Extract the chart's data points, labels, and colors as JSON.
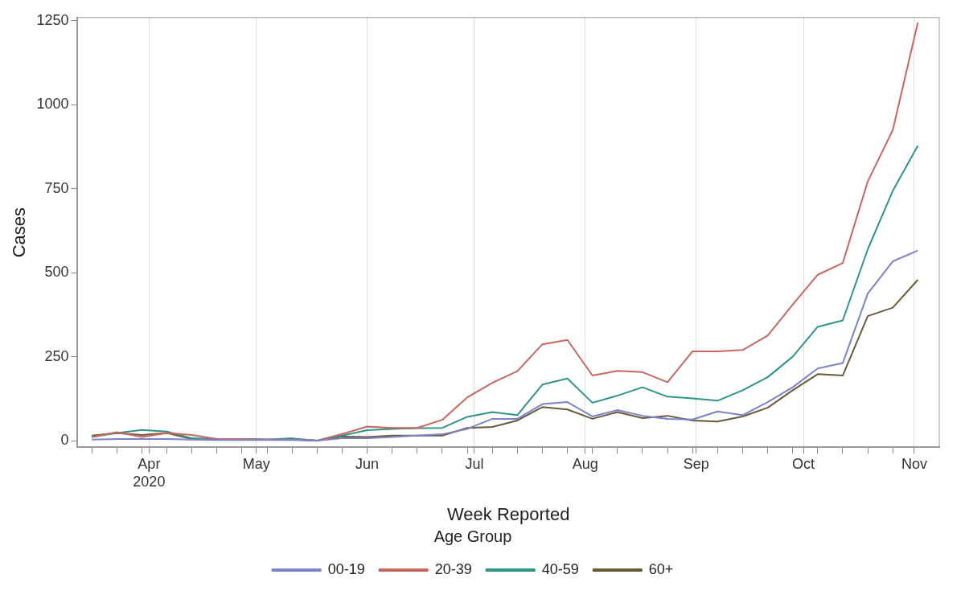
{
  "chart_data": {
    "type": "line",
    "xlabel": "Week Reported",
    "ylabel": "Cases",
    "legend_title": "Age Group",
    "legend": "bottom",
    "grid": "x",
    "marker": "none",
    "line_style": "solid",
    "x": [
      "2020-03-16",
      "2020-03-23",
      "2020-03-30",
      "2020-04-06",
      "2020-04-13",
      "2020-04-20",
      "2020-04-27",
      "2020-05-04",
      "2020-05-11",
      "2020-05-18",
      "2020-05-25",
      "2020-06-01",
      "2020-06-08",
      "2020-06-15",
      "2020-06-22",
      "2020-06-29",
      "2020-07-06",
      "2020-07-13",
      "2020-07-20",
      "2020-07-27",
      "2020-08-03",
      "2020-08-10",
      "2020-08-17",
      "2020-08-24",
      "2020-08-31",
      "2020-09-07",
      "2020-09-14",
      "2020-09-21",
      "2020-09-28",
      "2020-10-05",
      "2020-10-12",
      "2020-10-19",
      "2020-10-26",
      "2020-11-02"
    ],
    "xlim": [
      "2020-03-12",
      "2020-11-08"
    ],
    "xticks": [
      {
        "value": "2020-03-16",
        "label": null
      },
      {
        "value": "2020-03-23",
        "label": null
      },
      {
        "value": "2020-03-30",
        "label": null
      },
      {
        "value": "2020-04-01",
        "label": "Apr 2020"
      },
      {
        "value": "2020-04-06",
        "label": null
      },
      {
        "value": "2020-04-13",
        "label": null
      },
      {
        "value": "2020-04-20",
        "label": null
      },
      {
        "value": "2020-04-27",
        "label": null
      },
      {
        "value": "2020-05-01",
        "label": "May"
      },
      {
        "value": "2020-05-04",
        "label": null
      },
      {
        "value": "2020-05-11",
        "label": null
      },
      {
        "value": "2020-05-18",
        "label": null
      },
      {
        "value": "2020-05-25",
        "label": null
      },
      {
        "value": "2020-06-01",
        "label": "Jun"
      },
      {
        "value": "2020-06-08",
        "label": null
      },
      {
        "value": "2020-06-15",
        "label": null
      },
      {
        "value": "2020-06-22",
        "label": null
      },
      {
        "value": "2020-06-29",
        "label": null
      },
      {
        "value": "2020-07-01",
        "label": "Jul"
      },
      {
        "value": "2020-07-06",
        "label": null
      },
      {
        "value": "2020-07-13",
        "label": null
      },
      {
        "value": "2020-07-20",
        "label": null
      },
      {
        "value": "2020-07-27",
        "label": null
      },
      {
        "value": "2020-08-01",
        "label": "Aug"
      },
      {
        "value": "2020-08-03",
        "label": null
      },
      {
        "value": "2020-08-10",
        "label": null
      },
      {
        "value": "2020-08-17",
        "label": null
      },
      {
        "value": "2020-08-24",
        "label": null
      },
      {
        "value": "2020-08-31",
        "label": null
      },
      {
        "value": "2020-09-01",
        "label": "Sep"
      },
      {
        "value": "2020-09-07",
        "label": null
      },
      {
        "value": "2020-09-14",
        "label": null
      },
      {
        "value": "2020-09-21",
        "label": null
      },
      {
        "value": "2020-09-28",
        "label": null
      },
      {
        "value": "2020-10-01",
        "label": "Oct"
      },
      {
        "value": "2020-10-05",
        "label": null
      },
      {
        "value": "2020-10-12",
        "label": null
      },
      {
        "value": "2020-10-19",
        "label": null
      },
      {
        "value": "2020-10-26",
        "label": null
      },
      {
        "value": "2020-11-01",
        "label": "Nov"
      }
    ],
    "ylim": [
      -20,
      1260
    ],
    "yticks": [
      0,
      250,
      500,
      750,
      1000,
      1250
    ],
    "series": [
      {
        "name": "00-19",
        "color": "#7b83c9",
        "values": [
          3,
          5,
          5,
          5,
          3,
          2,
          2,
          2,
          2,
          0,
          7,
          7,
          11,
          15,
          19,
          35,
          65,
          65,
          109,
          115,
          72,
          91,
          74,
          65,
          63,
          87,
          76,
          115,
          159,
          215,
          231,
          438,
          534,
          566
        ]
      },
      {
        "name": "20-39",
        "color": "#c8675f",
        "values": [
          11,
          25,
          11,
          23,
          17,
          5,
          5,
          3,
          3,
          0,
          20,
          42,
          38,
          38,
          62,
          129,
          172,
          207,
          287,
          300,
          194,
          208,
          204,
          174,
          266,
          266,
          270,
          313,
          405,
          494,
          529,
          772,
          925,
          1245
        ]
      },
      {
        "name": "40-59",
        "color": "#2e9488",
        "values": [
          11,
          23,
          32,
          27,
          7,
          5,
          5,
          3,
          7,
          0,
          15,
          31,
          35,
          37,
          38,
          71,
          85,
          76,
          167,
          185,
          113,
          134,
          159,
          131,
          126,
          119,
          150,
          189,
          250,
          339,
          358,
          570,
          744,
          878
        ]
      },
      {
        "name": "60+",
        "color": "#6b5a3a",
        "values": [
          15,
          23,
          17,
          23,
          5,
          5,
          5,
          3,
          3,
          0,
          12,
          11,
          15,
          15,
          15,
          38,
          41,
          60,
          100,
          93,
          65,
          85,
          67,
          74,
          60,
          57,
          72,
          98,
          150,
          198,
          194,
          371,
          396,
          479
        ]
      }
    ]
  }
}
